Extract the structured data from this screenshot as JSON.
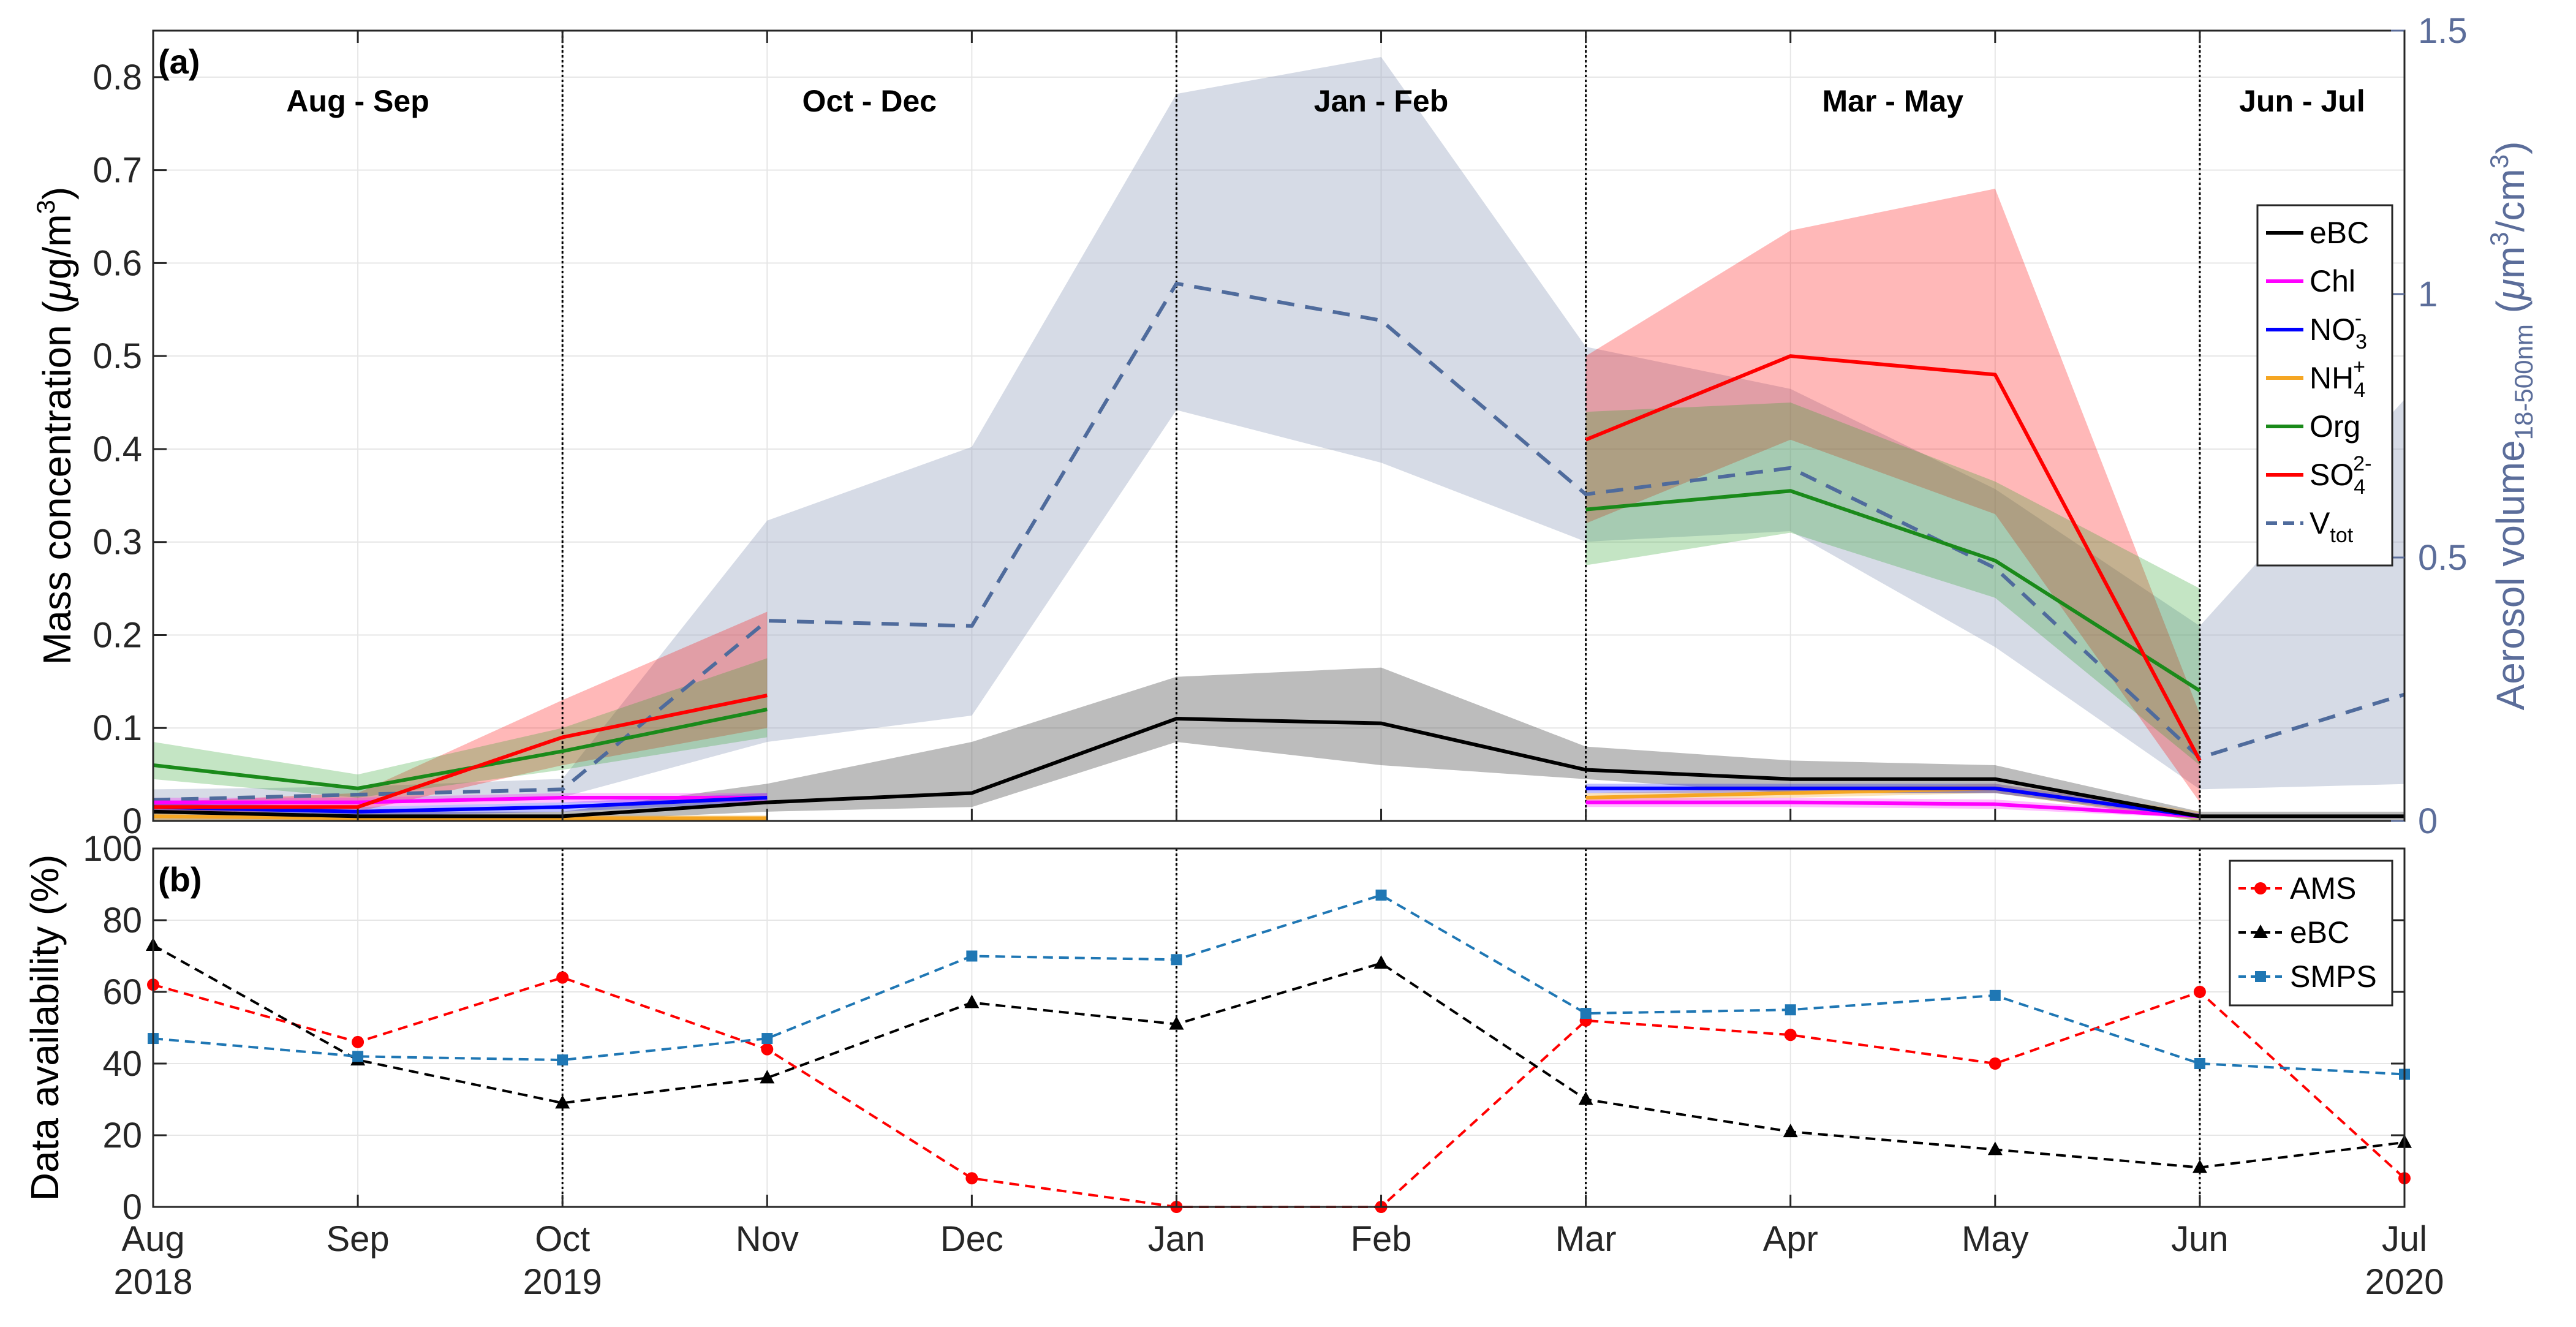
{
  "chart_data": [
    {
      "type": "line",
      "panel_label": "(a)",
      "x": [
        "Aug 2018",
        "Sep",
        "Oct 2019",
        "Nov",
        "Dec",
        "Jan",
        "Feb",
        "Mar",
        "Apr",
        "May",
        "Jun",
        "Jul 2020"
      ],
      "x_ticks": [
        {
          "line1": "Aug",
          "line2": "2018"
        },
        {
          "line1": "Sep",
          "line2": ""
        },
        {
          "line1": "Oct",
          "line2": "2019"
        },
        {
          "line1": "Nov",
          "line2": ""
        },
        {
          "line1": "Dec",
          "line2": ""
        },
        {
          "line1": "Jan",
          "line2": ""
        },
        {
          "line1": "Feb",
          "line2": ""
        },
        {
          "line1": "Mar",
          "line2": ""
        },
        {
          "line1": "Apr",
          "line2": ""
        },
        {
          "line1": "May",
          "line2": ""
        },
        {
          "line1": "Jun",
          "line2": ""
        },
        {
          "line1": "Jul",
          "line2": "2020"
        }
      ],
      "ylabel": {
        "main": "Mass concentration (",
        "mu": "μ",
        "unit": "g/m",
        "sup": "3",
        "close": ")"
      },
      "ylim": [
        0,
        0.85
      ],
      "yticks": [
        0,
        0.1,
        0.2,
        0.3,
        0.4,
        0.5,
        0.6,
        0.7,
        0.8
      ],
      "ytick_labels": [
        "0",
        "0.1",
        "0.2",
        "0.3",
        "0.4",
        "0.5",
        "0.6",
        "0.7",
        "0.8"
      ],
      "y2label": {
        "main": "Aerosol volume",
        "sub": "18-500nm",
        "open": " (",
        "mu": "μ",
        "unit": "m",
        "sup1": "3",
        "mid": "/cm",
        "sup2": "3",
        "close": ")"
      },
      "y2lim": [
        0,
        1.5
      ],
      "y2ticks": [
        0,
        0.5,
        1,
        1.5
      ],
      "y2tick_labels": [
        "0",
        "0.5",
        "1",
        "1.5"
      ],
      "seasons": [
        "Aug - Sep",
        "Oct - Dec",
        "Jan - Feb",
        "Mar - May",
        "Jun - Jul"
      ],
      "season_separators": [
        2,
        5,
        7,
        10
      ],
      "grid": true,
      "legend_position": "right",
      "series": [
        {
          "name": "eBC",
          "color": "#000000",
          "band_color": "#404040",
          "axis": "left",
          "dash": "solid",
          "values": [
            0.01,
            0.005,
            0.005,
            0.02,
            0.03,
            0.11,
            0.105,
            0.055,
            0.045,
            0.045,
            0.005,
            0.005
          ],
          "lower": [
            0.0,
            0.0,
            0.0,
            0.01,
            0.015,
            0.085,
            0.06,
            0.045,
            0.03,
            0.03,
            0.0,
            0.0
          ],
          "upper": [
            0.02,
            0.01,
            0.01,
            0.04,
            0.085,
            0.155,
            0.165,
            0.08,
            0.065,
            0.06,
            0.01,
            0.01
          ]
        },
        {
          "name": "Chl",
          "color": "#ff00ff",
          "band_color": "#ff00ff",
          "axis": "left",
          "dash": "solid",
          "values": [
            0.02,
            0.02,
            0.025,
            0.025,
            null,
            null,
            null,
            0.02,
            0.02,
            0.018,
            0.005,
            null
          ],
          "lower": [
            0.015,
            0.015,
            0.02,
            0.02,
            null,
            null,
            null,
            0.015,
            0.015,
            0.013,
            0.003,
            null
          ],
          "upper": [
            0.025,
            0.025,
            0.03,
            0.03,
            null,
            null,
            null,
            0.025,
            0.025,
            0.023,
            0.008,
            null
          ]
        },
        {
          "name": "NO3-",
          "label": {
            "base": "NO",
            "sub": "3",
            "sup": "-"
          },
          "color": "#0000ff",
          "band_color": "#0000ff",
          "axis": "left",
          "dash": "solid",
          "values": [
            0.015,
            0.01,
            0.015,
            0.025,
            null,
            null,
            null,
            0.035,
            0.035,
            0.035,
            0.005,
            null
          ],
          "lower": [
            0.01,
            0.005,
            0.01,
            0.02,
            null,
            null,
            null,
            0.03,
            0.03,
            0.03,
            0.003,
            null
          ],
          "upper": [
            0.02,
            0.015,
            0.02,
            0.03,
            null,
            null,
            null,
            0.04,
            0.04,
            0.04,
            0.008,
            null
          ]
        },
        {
          "name": "NH4+",
          "label": {
            "base": "NH",
            "sub": "4",
            "sup": "+"
          },
          "color": "#f5a623",
          "band_color": "#f5a623",
          "axis": "left",
          "dash": "solid",
          "values": [
            0.005,
            0.003,
            0.003,
            0.003,
            null,
            null,
            null,
            0.025,
            0.03,
            0.035,
            0.005,
            null
          ],
          "lower": [
            0.0,
            0.0,
            0.0,
            0.0,
            null,
            null,
            null,
            0.02,
            0.025,
            0.03,
            0.0,
            null
          ],
          "upper": [
            0.01,
            0.006,
            0.006,
            0.006,
            null,
            null,
            null,
            0.03,
            0.035,
            0.04,
            0.01,
            null
          ]
        },
        {
          "name": "Org",
          "color": "#1a8a1a",
          "band_color": "#2ca02c",
          "axis": "left",
          "dash": "solid",
          "values": [
            0.06,
            0.035,
            0.075,
            0.12,
            null,
            null,
            null,
            0.335,
            0.355,
            0.28,
            0.14,
            null
          ],
          "lower": [
            0.045,
            0.025,
            0.055,
            0.09,
            null,
            null,
            null,
            0.275,
            0.31,
            0.24,
            0.06,
            null
          ],
          "upper": [
            0.085,
            0.05,
            0.1,
            0.175,
            null,
            null,
            null,
            0.44,
            0.45,
            0.365,
            0.25,
            null
          ]
        },
        {
          "name": "SO42-",
          "label": {
            "base": "SO",
            "sub": "4",
            "sup": "2-"
          },
          "color": "#ff0000",
          "band_color": "#ff0000",
          "axis": "left",
          "dash": "solid",
          "values": [
            0.015,
            0.015,
            0.09,
            0.135,
            null,
            null,
            null,
            0.41,
            0.5,
            0.48,
            0.065,
            null
          ],
          "lower": [
            0.01,
            0.01,
            0.06,
            0.1,
            null,
            null,
            null,
            0.32,
            0.41,
            0.33,
            0.02,
            null
          ],
          "upper": [
            0.02,
            0.03,
            0.13,
            0.225,
            null,
            null,
            null,
            0.5,
            0.635,
            0.68,
            0.115,
            null
          ]
        },
        {
          "name": "Vtot",
          "label": {
            "base": "V",
            "sub": "tot",
            "sup": ""
          },
          "color": "#4f6b9c",
          "band_color": "#8a97b8",
          "axis": "right",
          "dash": "dashed",
          "values": [
            0.04,
            0.05,
            0.06,
            0.38,
            0.37,
            1.02,
            0.95,
            0.62,
            0.67,
            0.48,
            0.12,
            0.24
          ],
          "lower": [
            0.025,
            0.035,
            0.045,
            0.15,
            0.2,
            0.78,
            0.68,
            0.53,
            0.55,
            0.33,
            0.06,
            0.07
          ],
          "upper": [
            0.06,
            0.065,
            0.08,
            0.57,
            0.71,
            1.38,
            1.45,
            0.9,
            0.82,
            0.63,
            0.37,
            0.8
          ]
        }
      ]
    },
    {
      "type": "line",
      "panel_label": "(b)",
      "x": [
        "Aug 2018",
        "Sep",
        "Oct 2019",
        "Nov",
        "Dec",
        "Jan",
        "Feb",
        "Mar",
        "Apr",
        "May",
        "Jun",
        "Jul 2020"
      ],
      "ylabel": "Data availability (%)",
      "ylim": [
        0,
        100
      ],
      "yticks": [
        0,
        20,
        40,
        60,
        80,
        100
      ],
      "ytick_labels": [
        "0",
        "20",
        "40",
        "60",
        "80",
        "100"
      ],
      "grid": true,
      "legend_position": "top-right",
      "series": [
        {
          "name": "AMS",
          "color": "#ff0000",
          "marker": "circle",
          "values": [
            62,
            46,
            64,
            44,
            8,
            0,
            0,
            52,
            48,
            40,
            60,
            8
          ]
        },
        {
          "name": "eBC",
          "color": "#000000",
          "marker": "triangle",
          "values": [
            73,
            41,
            29,
            36,
            57,
            51,
            68,
            30,
            21,
            16,
            11,
            18
          ]
        },
        {
          "name": "SMPS",
          "color": "#1f77b4",
          "marker": "square",
          "values": [
            47,
            42,
            41,
            47,
            70,
            69,
            87,
            54,
            55,
            59,
            40,
            37
          ]
        }
      ]
    }
  ]
}
